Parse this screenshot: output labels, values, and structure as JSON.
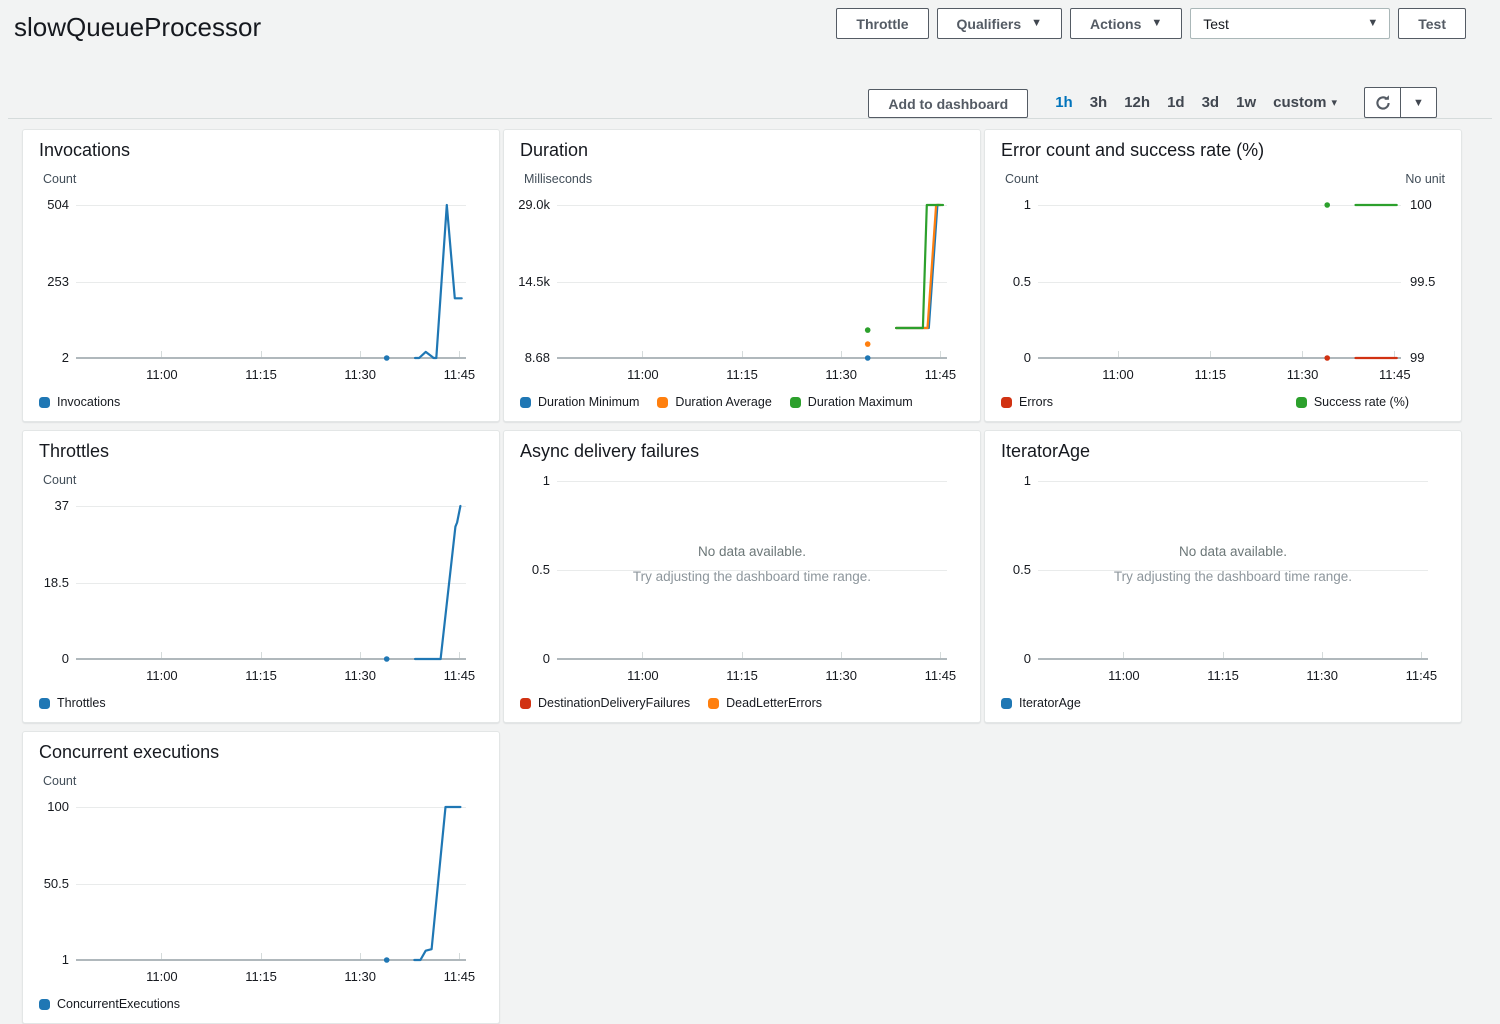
{
  "page": {
    "title": "slowQueueProcessor"
  },
  "header_actions": {
    "throttle": "Throttle",
    "qualifiers": "Qualifiers",
    "actions": "Actions",
    "test_select_value": "Test",
    "test_button": "Test"
  },
  "toolbar": {
    "add_to_dashboard": "Add to dashboard",
    "time_ranges": [
      {
        "label": "1h",
        "selected": true
      },
      {
        "label": "3h"
      },
      {
        "label": "12h"
      },
      {
        "label": "1d"
      },
      {
        "label": "3d"
      },
      {
        "label": "1w"
      },
      {
        "label": "custom",
        "caret": true
      }
    ]
  },
  "no_data_message": {
    "line1": "No data available.",
    "line2": "Try adjusting the dashboard time range."
  },
  "time_axis": {
    "domain_minutes": [
      647,
      706
    ],
    "tick_minutes": [
      660,
      675,
      690,
      705
    ],
    "tick_labels": [
      "11:00",
      "11:15",
      "11:30",
      "11:45"
    ]
  },
  "colors": {
    "selected_range_blue": "#0073bb",
    "series_blue": "#1f77b4",
    "series_orange": "#ff7f0e",
    "series_green": "#2ca02c",
    "series_red": "#d13212",
    "axis": "#b0b8bc",
    "gridline": "#e9ebeb"
  },
  "chart_data": [
    {
      "type": "line",
      "title": "Invocations",
      "unit_left": "Count",
      "left_ticks": [
        {
          "label": "504",
          "v": 504
        },
        {
          "label": "253",
          "v": 253
        },
        {
          "label": "2",
          "v": 2
        }
      ],
      "series": [
        {
          "name": "Invocations",
          "color": "#1f77b4",
          "axis": "left",
          "dots": [
            [
              694,
              2
            ]
          ],
          "points": [
            [
              698.3,
              2
            ],
            [
              698.9,
              2
            ],
            [
              699.9,
              22
            ],
            [
              700.7,
              9
            ],
            [
              701.1,
              2
            ],
            [
              701.5,
              2
            ],
            [
              703.1,
              504
            ],
            [
              704.3,
              198
            ],
            [
              705.35,
              198
            ]
          ]
        }
      ],
      "legend": [
        {
          "label": "Invocations",
          "color": "#1f77b4"
        }
      ]
    },
    {
      "type": "line",
      "title": "Duration",
      "unit_left": "Milliseconds",
      "left_ticks": [
        {
          "label": "29.0k",
          "v": 29000
        },
        {
          "label": "14.5k",
          "v": 14500
        },
        {
          "label": "8.68",
          "v": 8.68
        }
      ],
      "series": [
        {
          "name": "Duration Minimum",
          "color": "#1f77b4",
          "axis": "left",
          "dots": [
            [
              694,
              8.68
            ]
          ],
          "points": [
            [
              698.3,
              5700
            ],
            [
              703.25,
              5700
            ],
            [
              704.55,
              29000
            ],
            [
              704.8,
              29000
            ]
          ]
        },
        {
          "name": "Duration Average",
          "color": "#ff7f0e",
          "axis": "left",
          "dots": [
            [
              694,
              2650
            ]
          ],
          "points": [
            [
              698.3,
              5700
            ],
            [
              703.05,
              5700
            ],
            [
              704.35,
              29000
            ],
            [
              705.05,
              29000
            ]
          ]
        },
        {
          "name": "Duration Maximum",
          "color": "#2ca02c",
          "axis": "left",
          "dots": [
            [
              694,
              5300
            ]
          ],
          "points": [
            [
              698.3,
              5700
            ],
            [
              702.35,
              5700
            ],
            [
              702.95,
              29000
            ],
            [
              705.4,
              29000
            ]
          ]
        }
      ],
      "legend": [
        {
          "label": "Duration Minimum",
          "color": "#1f77b4"
        },
        {
          "label": "Duration Average",
          "color": "#ff7f0e"
        },
        {
          "label": "Duration Maximum",
          "color": "#2ca02c"
        }
      ]
    },
    {
      "type": "line",
      "title": "Error count and success rate (%)",
      "unit_left": "Count",
      "unit_right": "No unit",
      "left_ticks": [
        {
          "label": "1",
          "v": 1
        },
        {
          "label": "0.5",
          "v": 0.5
        },
        {
          "label": "0",
          "v": 0
        }
      ],
      "right_ticks": [
        {
          "label": "100",
          "v": 100
        },
        {
          "label": "99.5",
          "v": 99.5
        },
        {
          "label": "99",
          "v": 99
        }
      ],
      "series": [
        {
          "name": "Errors",
          "color": "#d13212",
          "axis": "left",
          "dots": [
            [
              694,
              0
            ]
          ],
          "points": [
            [
              698.6,
              0
            ],
            [
              705.3,
              0
            ]
          ]
        },
        {
          "name": "Success rate (%)",
          "color": "#2ca02c",
          "axis": "right",
          "dots": [
            [
              694,
              100
            ]
          ],
          "points": [
            [
              698.6,
              100
            ],
            [
              705.3,
              100
            ]
          ]
        }
      ],
      "legend_align": "spread",
      "legend": [
        {
          "label": "Errors",
          "color": "#d13212"
        },
        {
          "label": "Success rate (%)",
          "color": "#2ca02c"
        }
      ]
    },
    {
      "type": "line",
      "title": "Throttles",
      "unit_left": "Count",
      "left_ticks": [
        {
          "label": "37",
          "v": 37
        },
        {
          "label": "18.5",
          "v": 18.5
        },
        {
          "label": "0",
          "v": 0
        }
      ],
      "series": [
        {
          "name": "Throttles",
          "color": "#1f77b4",
          "axis": "left",
          "dots": [
            [
              694,
              0
            ]
          ],
          "points": [
            [
              698.3,
              0
            ],
            [
              702.15,
              0
            ],
            [
              704.4,
              32
            ],
            [
              704.65,
              33
            ],
            [
              705.15,
              37
            ]
          ]
        }
      ],
      "legend": [
        {
          "label": "Throttles",
          "color": "#1f77b4"
        }
      ]
    },
    {
      "type": "line",
      "title": "Async delivery failures",
      "no_data": true,
      "left_ticks": [
        {
          "label": "1",
          "v": 1
        },
        {
          "label": "0.5",
          "v": 0.5
        },
        {
          "label": "0",
          "v": 0
        }
      ],
      "series": [],
      "legend": [
        {
          "label": "DestinationDeliveryFailures",
          "color": "#d13212"
        },
        {
          "label": "DeadLetterErrors",
          "color": "#ff7f0e"
        }
      ]
    },
    {
      "type": "line",
      "title": "IteratorAge",
      "no_data": true,
      "left_ticks": [
        {
          "label": "1",
          "v": 1
        },
        {
          "label": "0.5",
          "v": 0.5
        },
        {
          "label": "0",
          "v": 0
        }
      ],
      "series": [],
      "legend": [
        {
          "label": "IteratorAge",
          "color": "#1f77b4"
        }
      ]
    },
    {
      "type": "line",
      "title": "Concurrent executions",
      "unit_left": "Count",
      "left_ticks": [
        {
          "label": "100",
          "v": 100
        },
        {
          "label": "50.5",
          "v": 50.5
        },
        {
          "label": "1",
          "v": 1
        }
      ],
      "series": [
        {
          "name": "ConcurrentExecutions",
          "color": "#1f77b4",
          "axis": "left",
          "dots": [
            [
              694,
              1
            ]
          ],
          "points": [
            [
              698.2,
              1
            ],
            [
              699.1,
              1
            ],
            [
              699.9,
              7
            ],
            [
              700.8,
              8
            ],
            [
              702.9,
              100
            ],
            [
              705.15,
              100
            ]
          ]
        }
      ],
      "legend": [
        {
          "label": "ConcurrentExecutions",
          "color": "#1f77b4"
        }
      ]
    }
  ]
}
